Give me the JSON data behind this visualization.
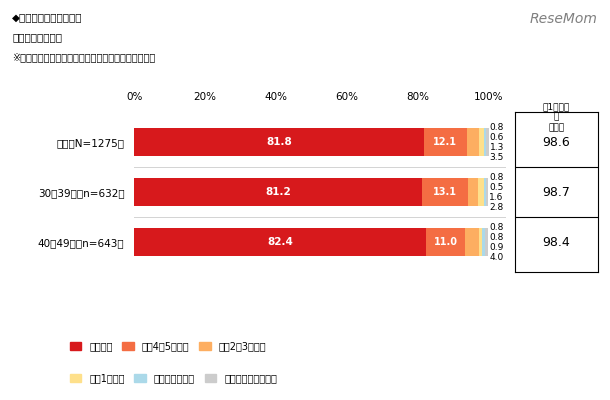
{
  "title_lines": [
    "◆自宅で夕食を作る頻度",
    "（単一回答形式）",
    "※対象者：事前調査の回答者で末子が高校生以下の方"
  ],
  "watermark": "ReseMom",
  "categories": [
    "全体【N=1275】",
    "30～39歳【n=632】",
    "40～49歳【n=643】"
  ],
  "series_labels": [
    "ほぼ毎日",
    "週に4～5日程度",
    "週に2～3日程度",
    "週に1日程度",
    "それ以下の頻度",
    "夕食は作っていない"
  ],
  "series_colors": [
    "#d7191c",
    "#f46d43",
    "#fdae61",
    "#fee08b",
    "#abd9e9",
    "#cccccc"
  ],
  "data": [
    [
      81.8,
      12.1,
      3.5,
      1.3,
      0.6,
      0.8
    ],
    [
      81.2,
      13.1,
      2.8,
      1.6,
      0.5,
      0.8
    ],
    [
      82.4,
      11.0,
      4.0,
      0.9,
      0.8,
      0.8
    ]
  ],
  "summary_header": "週1日以上\n計\n（％）",
  "summary_values": [
    "98.6",
    "98.7",
    "98.4"
  ],
  "xlim": [
    0,
    100
  ],
  "xlabel_ticks": [
    0,
    20,
    40,
    60,
    80,
    100
  ],
  "xlabel_ticklabels": [
    "0%",
    "20%",
    "40%",
    "60%",
    "80%",
    "100%"
  ],
  "bg_color": "#ffffff",
  "bar_height": 0.55
}
